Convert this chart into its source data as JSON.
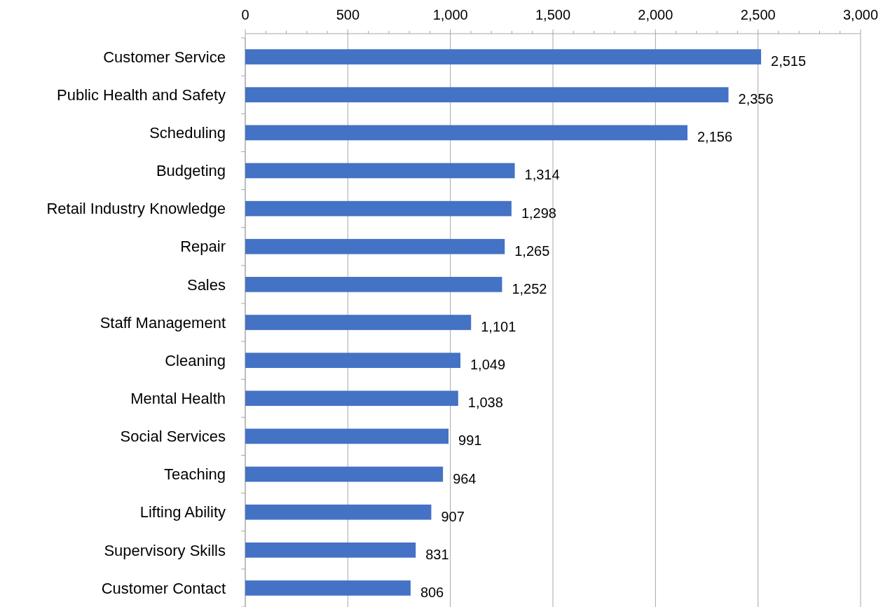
{
  "chart_data": {
    "type": "bar",
    "orientation": "horizontal",
    "categories": [
      "Customer Service",
      "Public Health and Safety",
      "Scheduling",
      "Budgeting",
      "Retail Industry Knowledge",
      "Repair",
      "Sales",
      "Staff Management",
      "Cleaning",
      "Mental Health",
      "Social Services",
      "Teaching",
      "Lifting Ability",
      "Supervisory Skills",
      "Customer Contact"
    ],
    "values": [
      2515,
      2356,
      2156,
      1314,
      1298,
      1265,
      1252,
      1101,
      1049,
      1038,
      991,
      964,
      907,
      831,
      806
    ],
    "color": "#4472c4",
    "xlim": [
      0,
      3000
    ],
    "xticks": [
      0,
      {
        "value": 100,
        "label": null
      },
      {
        "value": 200,
        "label": null
      },
      {
        "value": 300,
        "label": null
      },
      {
        "value": 400,
        "label": null
      },
      {
        "value": 500,
        "label": "500"
      },
      {
        "value": 600,
        "label": null
      },
      {
        "value": 700,
        "label": null
      },
      {
        "value": 800,
        "label": null
      },
      {
        "value": 900,
        "label": null
      },
      {
        "value": 1000,
        "label": "1,000"
      },
      {
        "value": 1100,
        "label": null
      },
      {
        "value": 1200,
        "label": null
      },
      {
        "value": 1300,
        "label": null
      },
      {
        "value": 1400,
        "label": null
      },
      {
        "value": 1500,
        "label": "1,500"
      },
      {
        "value": 1600,
        "label": null
      },
      {
        "value": 1700,
        "label": null
      },
      {
        "value": 1800,
        "label": null
      },
      {
        "value": 1900,
        "label": null
      },
      {
        "value": 2000,
        "label": "2,000"
      },
      {
        "value": 2100,
        "label": null
      },
      {
        "value": 2200,
        "label": null
      },
      {
        "value": 2300,
        "label": null
      },
      {
        "value": 2400,
        "label": null
      },
      {
        "value": 2500,
        "label": "2,500"
      },
      {
        "value": 2600,
        "label": null
      },
      {
        "value": 2700,
        "label": null
      },
      {
        "value": 2800,
        "label": null
      },
      {
        "value": 2900,
        "label": null
      },
      {
        "value": 3000,
        "label": "3,000"
      }
    ],
    "value_labels": [
      "2,515",
      "2,356",
      "2,156",
      "1,314",
      "1,298",
      "1,265",
      "1,252",
      "1,101",
      "1,049",
      "1,038",
      "991",
      "964",
      "907",
      "831",
      "806"
    ],
    "grid": "x"
  }
}
